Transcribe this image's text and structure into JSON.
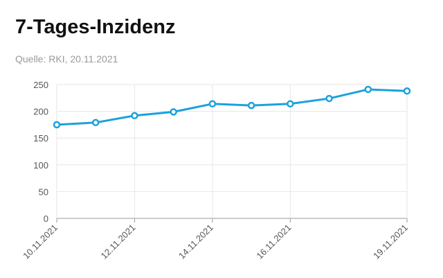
{
  "chart_data": {
    "type": "line",
    "title": "7-Tages-Inzidenz",
    "subtitle": "Quelle: RKI, 20.11.2021",
    "categories": [
      "10.11.2021",
      null,
      "12.11.2021",
      null,
      "14.11.2021",
      null,
      "16.11.2021",
      null,
      null,
      "19.11.2021"
    ],
    "values": [
      175,
      179,
      192,
      199,
      214,
      211,
      214,
      224,
      241,
      238
    ],
    "color": "#1ba1dd",
    "ylim": [
      0,
      250
    ],
    "yticks": [
      0,
      50,
      100,
      150,
      200,
      250
    ],
    "grid": true
  }
}
